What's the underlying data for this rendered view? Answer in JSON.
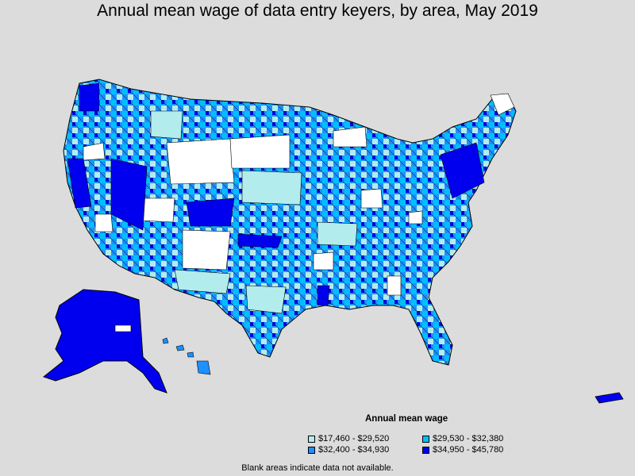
{
  "title": "Annual mean wage of data entry keyers, by area, May 2019",
  "legend": {
    "title": "Annual mean wage",
    "items": [
      {
        "label": "$17,460 - $29,520",
        "color": "#b3ecec"
      },
      {
        "label": "$29,530 - $32,380",
        "color": "#00bfff"
      },
      {
        "label": "$32,400 - $34,930",
        "color": "#1e90ff"
      },
      {
        "label": "$34,950 - $45,780",
        "color": "#0000ee"
      }
    ]
  },
  "footnote": "Blank areas indicate data not available.",
  "colors": {
    "background": "#dcdcdc",
    "blank": "#ffffff",
    "border": "#000000"
  }
}
